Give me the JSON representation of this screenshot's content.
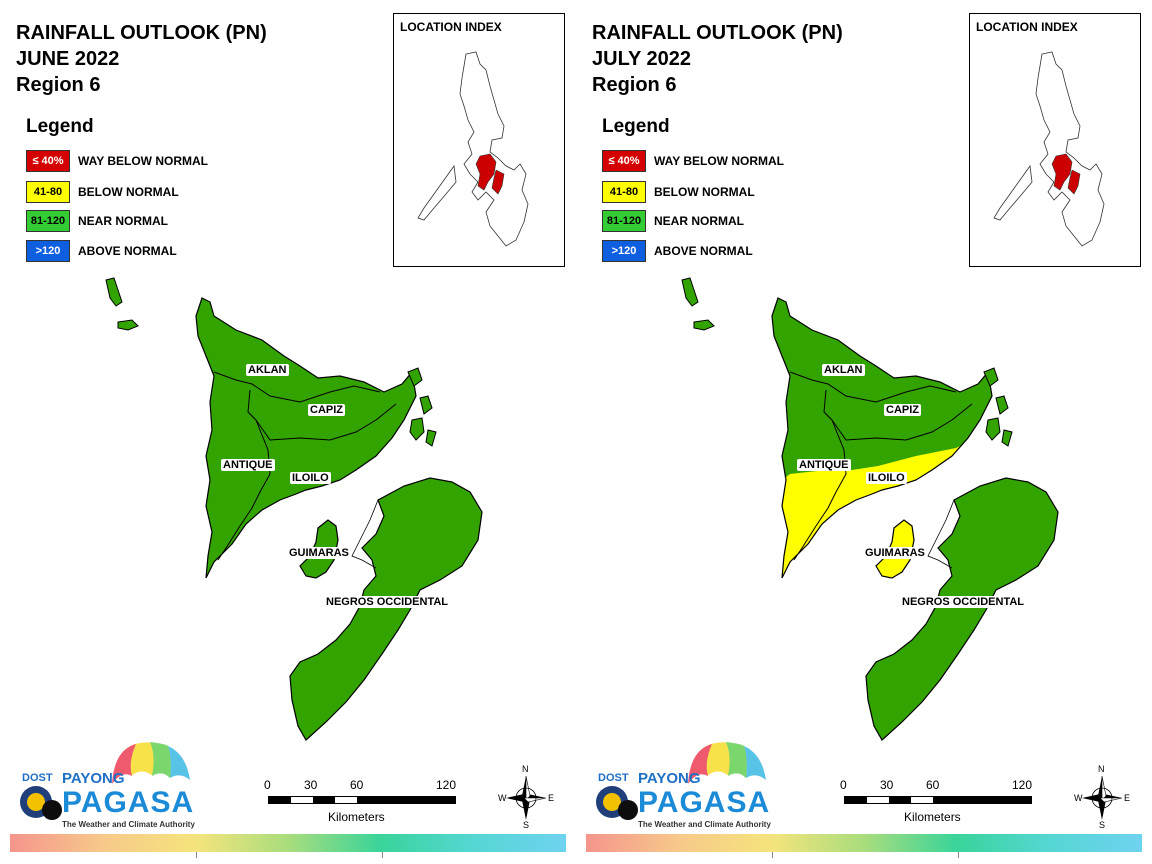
{
  "legend": {
    "title": "Legend",
    "items": [
      {
        "code": "≤ 40%",
        "label": "WAY BELOW NORMAL",
        "color": "#d40000",
        "text_color": "#ffffff"
      },
      {
        "code": "41-80",
        "label": "BELOW NORMAL",
        "color": "#ffff00",
        "text_color": "#000000"
      },
      {
        "code": "81-120",
        "label": "NEAR NORMAL",
        "color": "#33cc33",
        "text_color": "#000000"
      },
      {
        "code": ">120",
        "label": "ABOVE NORMAL",
        "color": "#0d5fe0",
        "text_color": "#ffffff"
      }
    ]
  },
  "location_index": {
    "title": "LOCATION INDEX",
    "highlight_color": "#cc0000"
  },
  "scale": {
    "ticks": [
      "0",
      "30",
      "60",
      "120"
    ],
    "unit": "Kilometers"
  },
  "compass": {
    "n": "N",
    "s": "S",
    "e": "E",
    "w": "W"
  },
  "logo": {
    "dost": "DOST",
    "payong": "PAYONG",
    "pagasa": "PAGASA",
    "tagline": "The Weather and Climate Authority"
  },
  "maps": [
    {
      "title_line1": "RAINFALL OUTLOOK (PN)",
      "title_line2": "JUNE 2022",
      "title_line3": "Region 6",
      "provinces": [
        {
          "name": "AKLAN",
          "category": "NEAR NORMAL",
          "color": "#33a300"
        },
        {
          "name": "CAPIZ",
          "category": "NEAR NORMAL",
          "color": "#33a300"
        },
        {
          "name": "ANTIQUE",
          "category": "NEAR NORMAL",
          "color": "#33a300"
        },
        {
          "name": "ILOILO",
          "category": "NEAR NORMAL",
          "color": "#33a300"
        },
        {
          "name": "GUIMARAS",
          "category": "NEAR NORMAL",
          "color": "#33a300"
        },
        {
          "name": "NEGROS OCCIDENTAL",
          "category": "NEAR NORMAL",
          "color": "#33a300"
        }
      ]
    },
    {
      "title_line1": "RAINFALL OUTLOOK (PN)",
      "title_line2": "JULY 2022",
      "title_line3": "Region 6",
      "provinces": [
        {
          "name": "AKLAN",
          "category": "NEAR NORMAL",
          "color": "#33a300"
        },
        {
          "name": "CAPIZ",
          "category": "NEAR NORMAL",
          "color": "#33a300"
        },
        {
          "name": "ANTIQUE",
          "category": "BELOW NORMAL (southern part)",
          "color": "#ffff00"
        },
        {
          "name": "ILOILO",
          "category": "BELOW NORMAL (southern part)",
          "color": "#ffff00"
        },
        {
          "name": "GUIMARAS",
          "category": "BELOW NORMAL",
          "color": "#ffff00"
        },
        {
          "name": "NEGROS OCCIDENTAL",
          "category": "NEAR NORMAL",
          "color": "#33a300"
        }
      ]
    }
  ]
}
